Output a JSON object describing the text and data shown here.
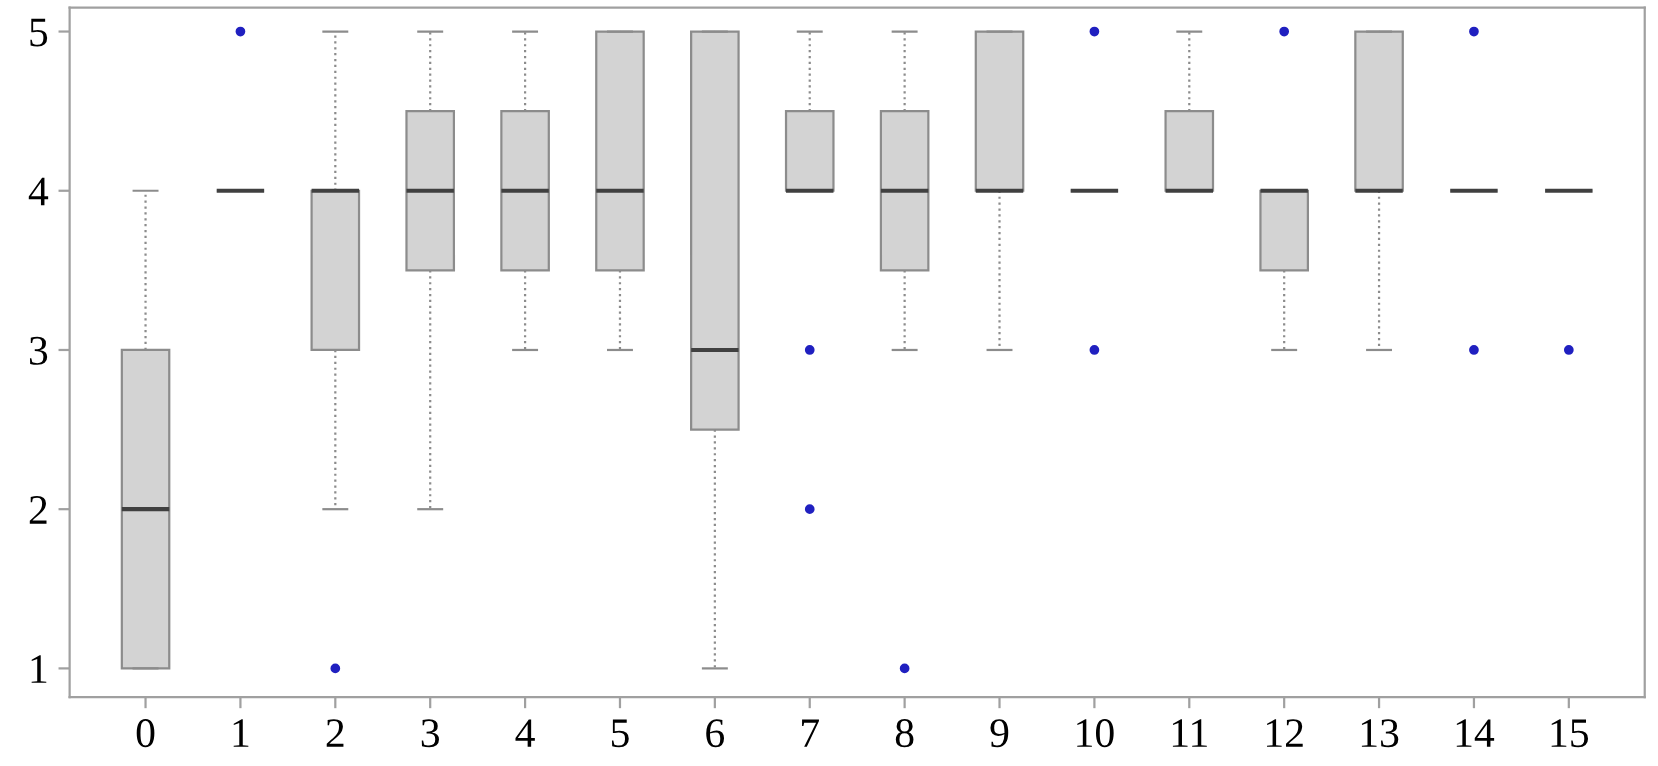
{
  "chart_data": {
    "type": "box",
    "categories": [
      "0",
      "1",
      "2",
      "3",
      "4",
      "5",
      "6",
      "7",
      "8",
      "9",
      "10",
      "11",
      "12",
      "13",
      "14",
      "15"
    ],
    "color": "#d3d3d3",
    "line_style": "dotted",
    "grid": false,
    "ylim": [
      0.82,
      5.15
    ],
    "yticks": [
      1,
      2,
      3,
      4,
      5
    ],
    "boxes": [
      {
        "low": 1,
        "q1": 1,
        "median": 2,
        "q3": 3,
        "high": 4
      },
      {
        "low": 4,
        "q1": 4,
        "median": 4,
        "q3": 4,
        "high": 4,
        "outliers": [
          5
        ]
      },
      {
        "low": 2,
        "q1": 3,
        "median": 4,
        "q3": 4,
        "high": 5,
        "outliers": [
          1
        ]
      },
      {
        "low": 2,
        "q1": 3.5,
        "median": 4,
        "q3": 4.5,
        "high": 5
      },
      {
        "low": 3,
        "q1": 3.5,
        "median": 4,
        "q3": 4.5,
        "high": 5
      },
      {
        "low": 3,
        "q1": 3.5,
        "median": 4,
        "q3": 5,
        "high": 5
      },
      {
        "low": 1,
        "q1": 2.5,
        "median": 3,
        "q3": 5,
        "high": 5
      },
      {
        "low": 4,
        "q1": 4,
        "median": 4,
        "q3": 4.5,
        "high": 5,
        "outliers": [
          3,
          2
        ]
      },
      {
        "low": 3,
        "q1": 3.5,
        "median": 4,
        "q3": 4.5,
        "high": 5,
        "outliers": [
          1
        ]
      },
      {
        "low": 3,
        "q1": 4,
        "median": 4,
        "q3": 5,
        "high": 5
      },
      {
        "low": 4,
        "q1": 4,
        "median": 4,
        "q3": 4,
        "high": 4,
        "outliers": [
          5,
          3
        ]
      },
      {
        "low": 4,
        "q1": 4,
        "median": 4,
        "q3": 4.5,
        "high": 5
      },
      {
        "low": 3,
        "q1": 3.5,
        "median": 4,
        "q3": 4,
        "high": 4,
        "outliers": [
          5
        ]
      },
      {
        "low": 3,
        "q1": 4,
        "median": 4,
        "q3": 5,
        "high": 5
      },
      {
        "low": 4,
        "q1": 4,
        "median": 4,
        "q3": 4,
        "high": 4,
        "outliers": [
          5,
          3
        ]
      },
      {
        "low": 4,
        "q1": 4,
        "median": 4,
        "q3": 4,
        "high": 4,
        "outliers": [
          3
        ]
      }
    ]
  }
}
